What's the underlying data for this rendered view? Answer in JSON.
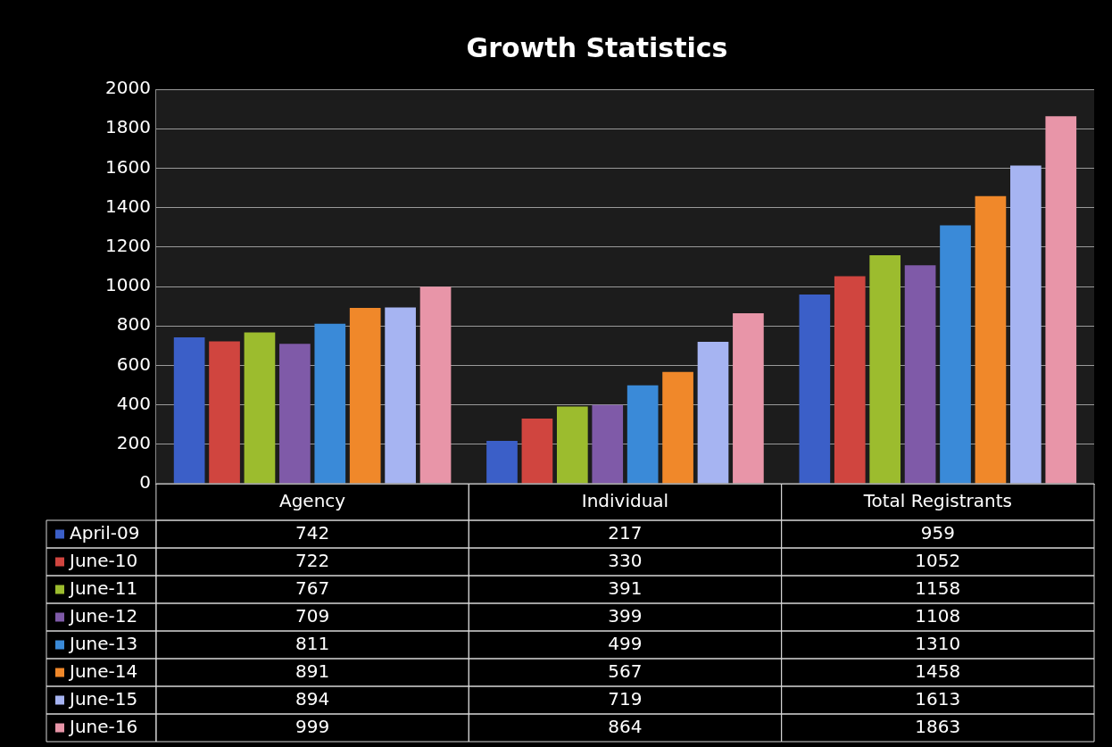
{
  "chart_data": {
    "type": "bar",
    "title": "Growth Statistics",
    "categories": [
      "Agency",
      "Individual",
      "Total Registrants"
    ],
    "series": [
      {
        "name": "April-09",
        "color": "#3b5fc8",
        "values": [
          742,
          217,
          959
        ]
      },
      {
        "name": "June-10",
        "color": "#d0453f",
        "values": [
          722,
          330,
          1052
        ]
      },
      {
        "name": "June-11",
        "color": "#9cbc2e",
        "values": [
          767,
          391,
          1158
        ]
      },
      {
        "name": "June-12",
        "color": "#7f5aa8",
        "values": [
          709,
          399,
          1108
        ]
      },
      {
        "name": "June-13",
        "color": "#3a8ad8",
        "values": [
          811,
          499,
          1310
        ]
      },
      {
        "name": "June-14",
        "color": "#f0882a",
        "values": [
          891,
          567,
          1458
        ]
      },
      {
        "name": "June-15",
        "color": "#a6b4f2",
        "values": [
          894,
          719,
          1613
        ]
      },
      {
        "name": "June-16",
        "color": "#e895a8",
        "values": [
          999,
          864,
          1863
        ]
      }
    ],
    "ylim": [
      0,
      2000
    ],
    "yticks": [
      0,
      200,
      400,
      600,
      800,
      1000,
      1200,
      1400,
      1600,
      1800,
      2000
    ],
    "grid": "y",
    "legend": "bottom left",
    "data_labels": true
  }
}
